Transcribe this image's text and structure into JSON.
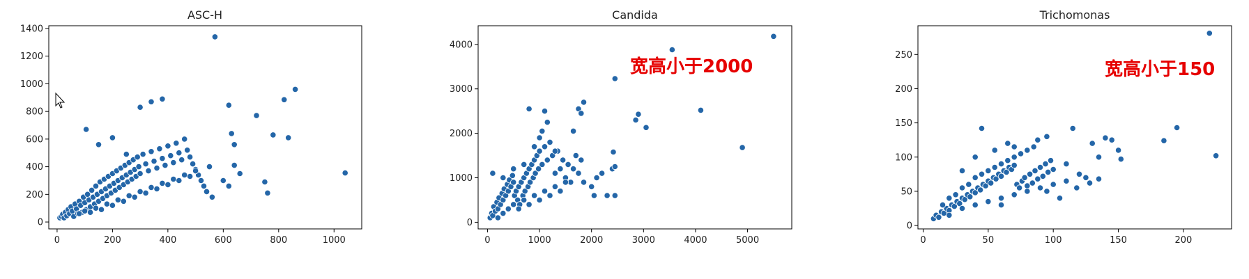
{
  "colors": {
    "point": "#2466a8",
    "annotation": "#e60000"
  },
  "chart_data": [
    {
      "type": "scatter",
      "title": "ASC-H",
      "xticks": [
        0,
        200,
        400,
        600,
        800,
        1000
      ],
      "yticks": [
        0,
        200,
        400,
        600,
        800,
        1000,
        1200,
        1400
      ],
      "xlim": [
        -30,
        1100
      ],
      "ylim": [
        -50,
        1420
      ],
      "annotation": "",
      "points": [
        [
          10,
          30
        ],
        [
          15,
          40
        ],
        [
          20,
          55
        ],
        [
          25,
          30
        ],
        [
          30,
          70
        ],
        [
          35,
          45
        ],
        [
          40,
          90
        ],
        [
          45,
          60
        ],
        [
          50,
          110
        ],
        [
          55,
          80
        ],
        [
          60,
          40
        ],
        [
          65,
          130
        ],
        [
          70,
          95
        ],
        [
          75,
          60
        ],
        [
          80,
          150
        ],
        [
          85,
          120
        ],
        [
          90,
          70
        ],
        [
          95,
          180
        ],
        [
          100,
          140
        ],
        [
          105,
          90
        ],
        [
          110,
          200
        ],
        [
          115,
          160
        ],
        [
          120,
          110
        ],
        [
          125,
          230
        ],
        [
          130,
          180
        ],
        [
          135,
          130
        ],
        [
          140,
          260
        ],
        [
          145,
          200
        ],
        [
          150,
          150
        ],
        [
          155,
          290
        ],
        [
          160,
          220
        ],
        [
          165,
          170
        ],
        [
          170,
          310
        ],
        [
          175,
          240
        ],
        [
          180,
          190
        ],
        [
          185,
          330
        ],
        [
          190,
          260
        ],
        [
          195,
          210
        ],
        [
          200,
          350
        ],
        [
          205,
          280
        ],
        [
          210,
          230
        ],
        [
          215,
          370
        ],
        [
          220,
          300
        ],
        [
          225,
          250
        ],
        [
          230,
          390
        ],
        [
          235,
          320
        ],
        [
          240,
          270
        ],
        [
          245,
          410
        ],
        [
          250,
          340
        ],
        [
          255,
          290
        ],
        [
          260,
          430
        ],
        [
          265,
          360
        ],
        [
          270,
          310
        ],
        [
          275,
          450
        ],
        [
          280,
          380
        ],
        [
          285,
          330
        ],
        [
          290,
          470
        ],
        [
          295,
          400
        ],
        [
          300,
          350
        ],
        [
          310,
          490
        ],
        [
          320,
          420
        ],
        [
          330,
          370
        ],
        [
          340,
          510
        ],
        [
          350,
          440
        ],
        [
          360,
          390
        ],
        [
          370,
          530
        ],
        [
          380,
          460
        ],
        [
          390,
          410
        ],
        [
          400,
          550
        ],
        [
          410,
          480
        ],
        [
          420,
          430
        ],
        [
          430,
          570
        ],
        [
          440,
          500
        ],
        [
          450,
          450
        ],
        [
          460,
          600
        ],
        [
          470,
          520
        ],
        [
          480,
          470
        ],
        [
          490,
          420
        ],
        [
          500,
          380
        ],
        [
          510,
          340
        ],
        [
          520,
          300
        ],
        [
          530,
          260
        ],
        [
          540,
          220
        ],
        [
          550,
          400
        ],
        [
          560,
          180
        ],
        [
          80,
          60
        ],
        [
          100,
          80
        ],
        [
          120,
          70
        ],
        [
          140,
          100
        ],
        [
          160,
          90
        ],
        [
          180,
          130
        ],
        [
          200,
          120
        ],
        [
          220,
          160
        ],
        [
          240,
          150
        ],
        [
          260,
          190
        ],
        [
          280,
          180
        ],
        [
          300,
          220
        ],
        [
          320,
          210
        ],
        [
          340,
          250
        ],
        [
          360,
          240
        ],
        [
          380,
          280
        ],
        [
          400,
          270
        ],
        [
          420,
          310
        ],
        [
          440,
          300
        ],
        [
          460,
          340
        ],
        [
          480,
          330
        ],
        [
          500,
          370
        ],
        [
          150,
          560
        ],
        [
          200,
          610
        ],
        [
          250,
          490
        ],
        [
          300,
          830
        ],
        [
          340,
          870
        ],
        [
          380,
          890
        ],
        [
          105,
          670
        ],
        [
          570,
          1340
        ],
        [
          620,
          845
        ],
        [
          630,
          640
        ],
        [
          640,
          560
        ],
        [
          600,
          300
        ],
        [
          620,
          260
        ],
        [
          640,
          410
        ],
        [
          660,
          350
        ],
        [
          720,
          770
        ],
        [
          750,
          290
        ],
        [
          760,
          210
        ],
        [
          780,
          630
        ],
        [
          820,
          885
        ],
        [
          835,
          610
        ],
        [
          860,
          960
        ],
        [
          1040,
          355
        ]
      ]
    },
    {
      "type": "scatter",
      "title": "Candida",
      "xticks": [
        0,
        1000,
        2000,
        3000,
        4000,
        5000
      ],
      "yticks": [
        0,
        1000,
        2000,
        3000,
        4000
      ],
      "xlim": [
        -180,
        5850
      ],
      "ylim": [
        -150,
        4420
      ],
      "annotation": "宽高小于2000",
      "points": [
        [
          50,
          100
        ],
        [
          80,
          200
        ],
        [
          100,
          150
        ],
        [
          120,
          350
        ],
        [
          150,
          250
        ],
        [
          180,
          450
        ],
        [
          200,
          300
        ],
        [
          220,
          550
        ],
        [
          250,
          400
        ],
        [
          280,
          650
        ],
        [
          300,
          500
        ],
        [
          320,
          750
        ],
        [
          350,
          600
        ],
        [
          380,
          850
        ],
        [
          400,
          700
        ],
        [
          420,
          950
        ],
        [
          450,
          800
        ],
        [
          480,
          1050
        ],
        [
          500,
          900
        ],
        [
          520,
          600
        ],
        [
          550,
          700
        ],
        [
          580,
          500
        ],
        [
          600,
          800
        ],
        [
          620,
          400
        ],
        [
          650,
          900
        ],
        [
          680,
          600
        ],
        [
          700,
          1000
        ],
        [
          720,
          700
        ],
        [
          750,
          1100
        ],
        [
          780,
          800
        ],
        [
          800,
          1200
        ],
        [
          820,
          900
        ],
        [
          850,
          1300
        ],
        [
          880,
          1000
        ],
        [
          900,
          1400
        ],
        [
          920,
          1100
        ],
        [
          950,
          1500
        ],
        [
          980,
          1200
        ],
        [
          1000,
          1600
        ],
        [
          1050,
          1300
        ],
        [
          1100,
          1700
        ],
        [
          1150,
          1400
        ],
        [
          1200,
          1800
        ],
        [
          1250,
          1500
        ],
        [
          1300,
          1100
        ],
        [
          1350,
          1600
        ],
        [
          1400,
          1200
        ],
        [
          1450,
          1400
        ],
        [
          1500,
          1000
        ],
        [
          1550,
          1300
        ],
        [
          1600,
          900
        ],
        [
          1650,
          1200
        ],
        [
          1700,
          1500
        ],
        [
          1750,
          1100
        ],
        [
          1800,
          1400
        ],
        [
          1850,
          900
        ],
        [
          200,
          100
        ],
        [
          300,
          200
        ],
        [
          400,
          300
        ],
        [
          500,
          400
        ],
        [
          600,
          300
        ],
        [
          700,
          500
        ],
        [
          800,
          400
        ],
        [
          900,
          600
        ],
        [
          1000,
          500
        ],
        [
          1100,
          700
        ],
        [
          1200,
          600
        ],
        [
          1300,
          800
        ],
        [
          1400,
          700
        ],
        [
          1500,
          900
        ],
        [
          100,
          1100
        ],
        [
          300,
          1000
        ],
        [
          500,
          1200
        ],
        [
          700,
          1300
        ],
        [
          900,
          1700
        ],
        [
          1000,
          1900
        ],
        [
          800,
          2550
        ],
        [
          1100,
          2500
        ],
        [
          1150,
          2250
        ],
        [
          1050,
          2050
        ],
        [
          1750,
          2550
        ],
        [
          1850,
          2700
        ],
        [
          1800,
          2450
        ],
        [
          1650,
          2050
        ],
        [
          1200,
          1800
        ],
        [
          1300,
          1600
        ],
        [
          2000,
          800
        ],
        [
          2100,
          1000
        ],
        [
          2200,
          1100
        ],
        [
          2300,
          600
        ],
        [
          2400,
          1200
        ],
        [
          2450,
          1250
        ],
        [
          2420,
          1580
        ],
        [
          2050,
          600
        ],
        [
          2450,
          600
        ],
        [
          2450,
          3230
        ],
        [
          2850,
          2300
        ],
        [
          2900,
          2430
        ],
        [
          3050,
          2130
        ],
        [
          3550,
          3880
        ],
        [
          4100,
          2520
        ],
        [
          4900,
          1680
        ],
        [
          5500,
          4180
        ]
      ]
    },
    {
      "type": "scatter",
      "title": "Trichomonas",
      "xticks": [
        0,
        50,
        100,
        150,
        200
      ],
      "yticks": [
        0,
        50,
        100,
        150,
        200,
        250
      ],
      "xlim": [
        -4,
        237
      ],
      "ylim": [
        -5,
        292
      ],
      "annotation": "宽高小于150",
      "points": [
        [
          8,
          10
        ],
        [
          10,
          15
        ],
        [
          12,
          12
        ],
        [
          14,
          20
        ],
        [
          16,
          18
        ],
        [
          18,
          25
        ],
        [
          20,
          22
        ],
        [
          22,
          30
        ],
        [
          24,
          28
        ],
        [
          26,
          35
        ],
        [
          28,
          32
        ],
        [
          30,
          40
        ],
        [
          32,
          38
        ],
        [
          34,
          45
        ],
        [
          36,
          42
        ],
        [
          38,
          50
        ],
        [
          40,
          48
        ],
        [
          42,
          55
        ],
        [
          44,
          52
        ],
        [
          46,
          60
        ],
        [
          48,
          58
        ],
        [
          50,
          65
        ],
        [
          52,
          62
        ],
        [
          54,
          70
        ],
        [
          56,
          68
        ],
        [
          58,
          75
        ],
        [
          60,
          72
        ],
        [
          62,
          80
        ],
        [
          64,
          78
        ],
        [
          66,
          85
        ],
        [
          68,
          82
        ],
        [
          70,
          88
        ],
        [
          72,
          60
        ],
        [
          74,
          55
        ],
        [
          76,
          65
        ],
        [
          78,
          70
        ],
        [
          80,
          58
        ],
        [
          82,
          75
        ],
        [
          84,
          62
        ],
        [
          86,
          80
        ],
        [
          88,
          68
        ],
        [
          90,
          85
        ],
        [
          92,
          72
        ],
        [
          94,
          90
        ],
        [
          96,
          78
        ],
        [
          98,
          95
        ],
        [
          100,
          82
        ],
        [
          15,
          30
        ],
        [
          20,
          40
        ],
        [
          25,
          45
        ],
        [
          30,
          55
        ],
        [
          35,
          60
        ],
        [
          40,
          70
        ],
        [
          45,
          75
        ],
        [
          50,
          80
        ],
        [
          55,
          85
        ],
        [
          60,
          90
        ],
        [
          65,
          95
        ],
        [
          70,
          100
        ],
        [
          75,
          105
        ],
        [
          80,
          110
        ],
        [
          85,
          115
        ],
        [
          20,
          15
        ],
        [
          30,
          25
        ],
        [
          40,
          30
        ],
        [
          50,
          35
        ],
        [
          60,
          40
        ],
        [
          70,
          45
        ],
        [
          80,
          50
        ],
        [
          90,
          55
        ],
        [
          100,
          60
        ],
        [
          110,
          65
        ],
        [
          30,
          80
        ],
        [
          40,
          100
        ],
        [
          45,
          142
        ],
        [
          55,
          110
        ],
        [
          65,
          120
        ],
        [
          70,
          115
        ],
        [
          88,
          125
        ],
        [
          95,
          130
        ],
        [
          115,
          142
        ],
        [
          130,
          120
        ],
        [
          140,
          128
        ],
        [
          145,
          125
        ],
        [
          150,
          110
        ],
        [
          152,
          97
        ],
        [
          120,
          75
        ],
        [
          125,
          70
        ],
        [
          135,
          100
        ],
        [
          110,
          90
        ],
        [
          105,
          40
        ],
        [
          118,
          55
        ],
        [
          128,
          62
        ],
        [
          135,
          68
        ],
        [
          95,
          50
        ],
        [
          185,
          124
        ],
        [
          195,
          143
        ],
        [
          220,
          281
        ],
        [
          225,
          102
        ],
        [
          60,
          30
        ]
      ]
    }
  ]
}
